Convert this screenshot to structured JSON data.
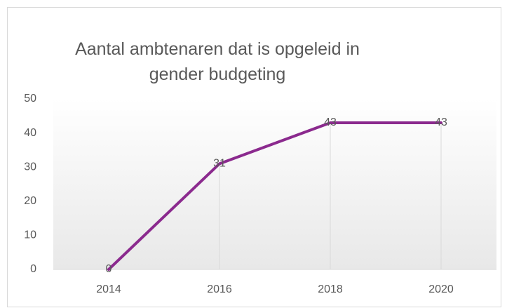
{
  "chart_data": {
    "type": "line",
    "title": "Aantal ambtenaren dat is opgeleid in gender budgeting",
    "categories": [
      "2014",
      "2016",
      "2018",
      "2020"
    ],
    "values": [
      0,
      31,
      43,
      43
    ],
    "color": "#8b2a8e",
    "ylim": [
      0,
      50
    ],
    "yticks": [
      0,
      10,
      20,
      30,
      40,
      50
    ],
    "drop_lines": true
  }
}
